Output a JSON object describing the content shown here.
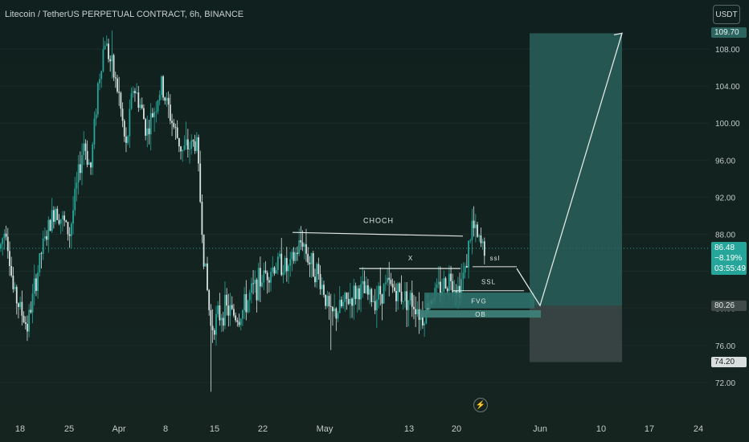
{
  "title": "Litecoin / TetherUS PERPETUAL CONTRACT, 6h, BINANCE",
  "currency_button": "USDT",
  "flash_icon": "lightning-icon",
  "colors": {
    "background": "#13211f",
    "candle_up": "#26a69a",
    "candle_down": "#d7e3e1",
    "target_zone": "#2a5f5b",
    "stop_zone": "#3b4747",
    "annotation": "#dfe6e4"
  },
  "price_tags": {
    "target": "109.70",
    "current_price": "86.48",
    "current_change": "−8.19%",
    "countdown": "03:55:49",
    "entry": "80.26",
    "stop": "74.20"
  },
  "chart_data": {
    "type": "candlestick",
    "symbol": "LTCUSDT.P",
    "interval": "6h",
    "exchange": "BINANCE",
    "y_axis": {
      "ticks": [
        "72.00",
        "76.00",
        "80.00",
        "84.00",
        "88.00",
        "92.00",
        "96.00",
        "100.00",
        "104.00",
        "108.00"
      ],
      "range": [
        70.8,
        111.9
      ]
    },
    "x_axis": {
      "ticks": [
        "18",
        "25",
        "Apr",
        "8",
        "15",
        "22",
        "May",
        "13",
        "20",
        "Jun",
        "10",
        "17",
        "24"
      ]
    },
    "price_path": [
      {
        "t": "Mar 15",
        "p": 86
      },
      {
        "t": "Mar 16",
        "p": 89
      },
      {
        "t": "Mar 17",
        "p": 82
      },
      {
        "t": "Mar 19",
        "p": 78
      },
      {
        "t": "Mar 21",
        "p": 86
      },
      {
        "t": "Mar 23",
        "p": 91
      },
      {
        "t": "Mar 25",
        "p": 88
      },
      {
        "t": "Mar 27",
        "p": 98
      },
      {
        "t": "Mar 28",
        "p": 95
      },
      {
        "t": "Mar 29",
        "p": 104
      },
      {
        "t": "Mar 30",
        "p": 109
      },
      {
        "t": "Apr 1",
        "p": 103
      },
      {
        "t": "Apr 2",
        "p": 97
      },
      {
        "t": "Apr 3",
        "p": 104
      },
      {
        "t": "Apr 4",
        "p": 102
      },
      {
        "t": "Apr 5",
        "p": 99
      },
      {
        "t": "Apr 7",
        "p": 104
      },
      {
        "t": "Apr 9",
        "p": 99
      },
      {
        "t": "Apr 10",
        "p": 97
      },
      {
        "t": "Apr 12",
        "p": 98
      },
      {
        "t": "Apr 13",
        "p": 86
      },
      {
        "t": "Apr 14",
        "p": 78
      },
      {
        "t": "Apr 16",
        "p": 80
      },
      {
        "t": "Apr 18",
        "p": 79
      },
      {
        "t": "Apr 20",
        "p": 82
      },
      {
        "t": "Apr 22",
        "p": 84
      },
      {
        "t": "Apr 24",
        "p": 85
      },
      {
        "t": "Apr 25",
        "p": 84
      },
      {
        "t": "Apr 27",
        "p": 87.5
      },
      {
        "t": "Apr 28",
        "p": 85
      },
      {
        "t": "Apr 29",
        "p": 84
      },
      {
        "t": "Apr 30",
        "p": 82
      },
      {
        "t": "May 1",
        "p": 79
      },
      {
        "t": "May 3",
        "p": 80.5
      },
      {
        "t": "May 5",
        "p": 82
      },
      {
        "t": "May 7",
        "p": 81
      },
      {
        "t": "May 9",
        "p": 82.5
      },
      {
        "t": "May 11",
        "p": 81.5
      },
      {
        "t": "May 13",
        "p": 80.5
      },
      {
        "t": "May 14",
        "p": 79
      },
      {
        "t": "May 15",
        "p": 81
      },
      {
        "t": "May 17",
        "p": 82.5
      },
      {
        "t": "May 18",
        "p": 83.5
      },
      {
        "t": "May 19",
        "p": 82
      },
      {
        "t": "May 20",
        "p": 84
      },
      {
        "t": "May 21",
        "p": 89
      },
      {
        "t": "May 22",
        "p": 87
      },
      {
        "t": "May 23",
        "p": 86.5
      }
    ],
    "wick_extremes": [
      {
        "t": "Mar 31",
        "p": 110
      },
      {
        "t": "Apr 14",
        "p": 71
      },
      {
        "t": "May 1",
        "p": 75.5
      }
    ],
    "annotations": {
      "choch_label": "CHOCH",
      "x_label": "X",
      "ssl_upper_label": "ssl",
      "ssl_lower_label": "SSL",
      "fvg_label": "FVG",
      "ob_label": "OB"
    },
    "levels": {
      "choch_start": 88.2,
      "choch_end": 87.8,
      "x_level": 84.3,
      "ssl_upper": 84.5,
      "ssl_lower": 81.9,
      "fvg_top": 81.7,
      "fvg_bottom": 80.0,
      "ob_top": 79.8,
      "ob_bottom": 79.0,
      "entry": 80.26,
      "target": 109.7,
      "stop": 74.2,
      "current": 86.48
    },
    "projection": [
      {
        "t": "May 23",
        "p": 84.3
      },
      {
        "t": "May 30",
        "p": 80.3
      },
      {
        "t": "Jun 14",
        "p": 109.7
      }
    ]
  }
}
